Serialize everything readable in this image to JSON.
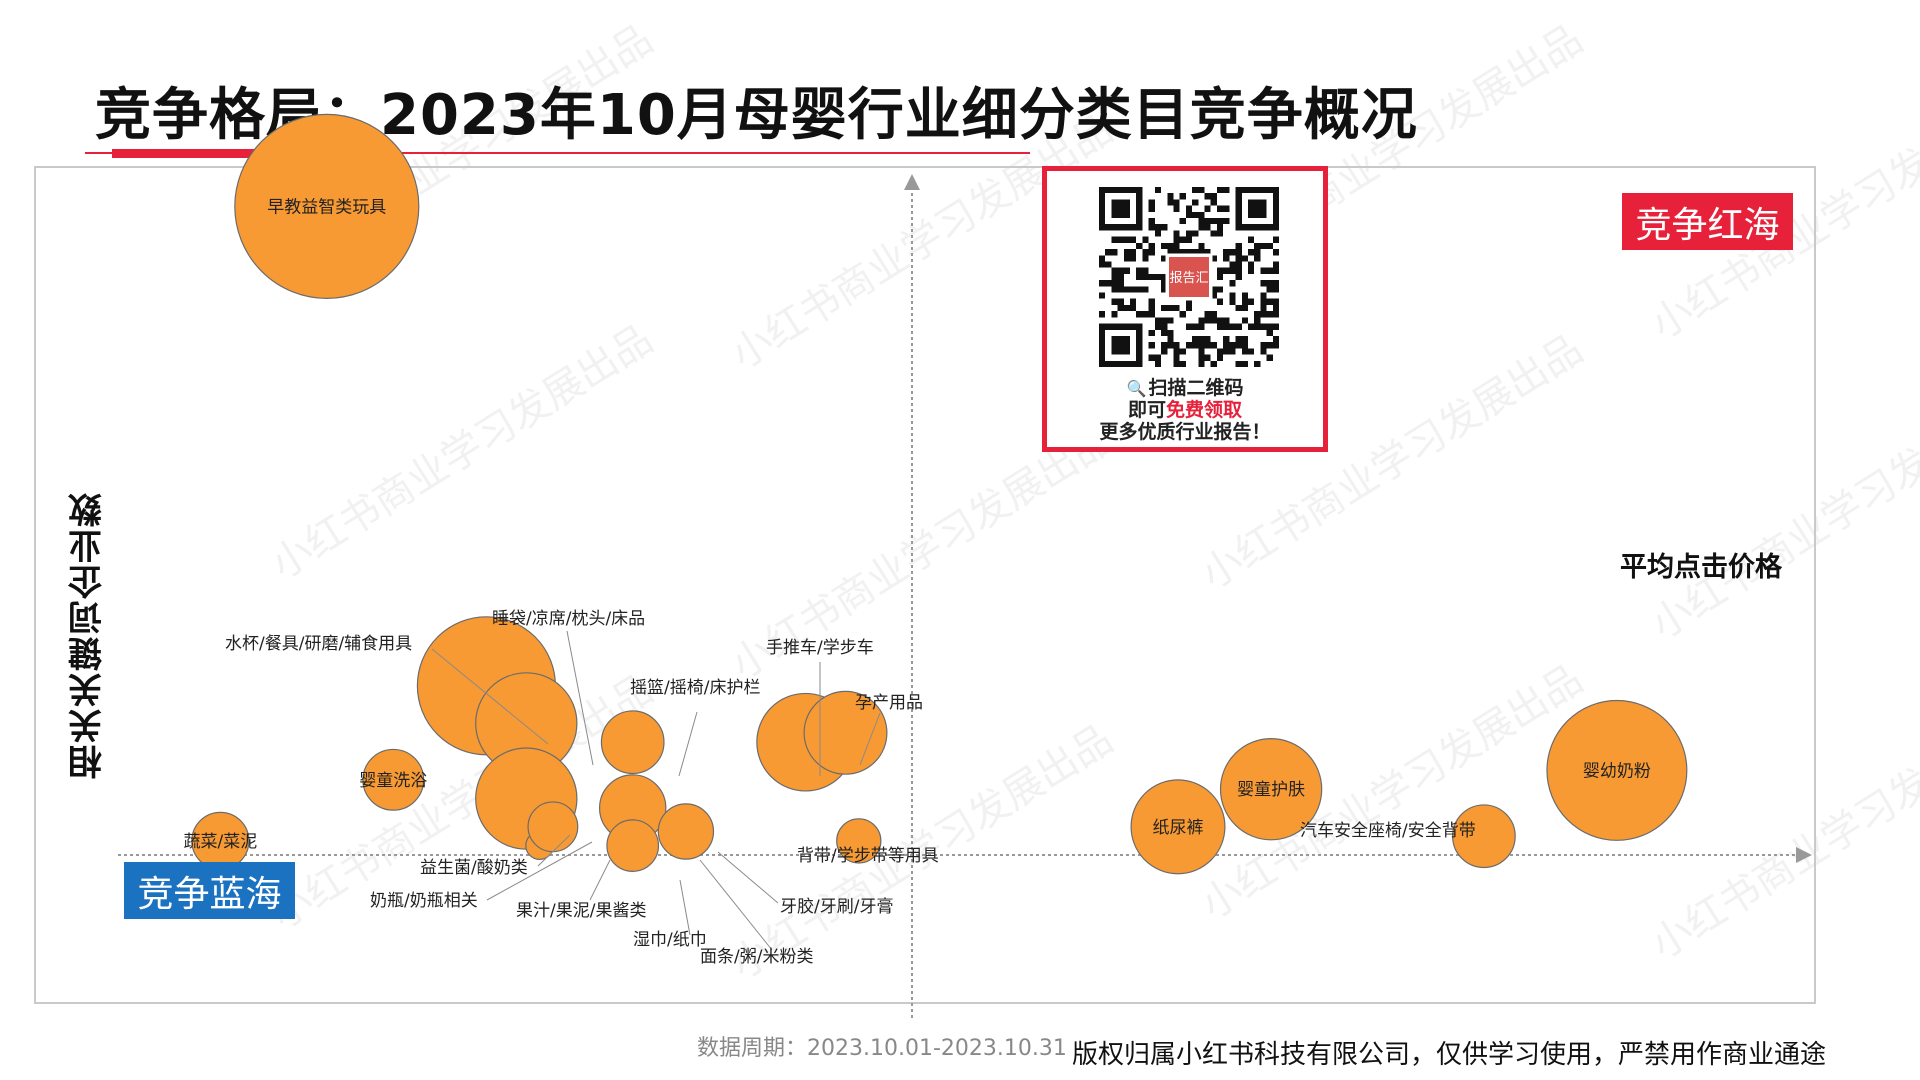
{
  "title": "竞争格局：2023年10月母婴行业细分类目竞争概况",
  "quadrants": {
    "red_sea": "竞争红海",
    "blue_sea": "竞争蓝海"
  },
  "qr": {
    "logo_text": "报告汇",
    "line1": "扫描二维码",
    "line2_prefix": "即可",
    "line2_highlight": "免费领取",
    "line3": "更多优质行业报告！"
  },
  "footer": {
    "date_range": "数据周期：2023.10.01-2023.10.31",
    "copyright": "版权归属小红书科技有限公司，仅供学习使用，严禁用作商业通途"
  },
  "watermark": "小红书商业学习发展出品",
  "colors": {
    "bubble": "#f89a33",
    "accent_red": "#e8213a",
    "accent_blue": "#1a72c0"
  },
  "chart_data": {
    "type": "scatter",
    "xlabel": "平均点击价格",
    "ylabel": "相关关键词企业数",
    "grid": false,
    "points": [
      {
        "label": "早教益智类玩具",
        "x": -4.4,
        "y": 6.9,
        "size": 1.0
      },
      {
        "label": "水杯/餐具/研磨/辅食用具",
        "x": -3.2,
        "y": 1.8,
        "size": 0.75
      },
      {
        "label": "睡袋/凉席/枕头/床品",
        "x": -2.9,
        "y": 1.4,
        "size": 0.55
      },
      {
        "label": "摇篮/摇椅/床护栏",
        "x": -2.1,
        "y": 1.2,
        "size": 0.34
      },
      {
        "label": "手推车/学步车",
        "x": -0.8,
        "y": 1.2,
        "size": 0.53
      },
      {
        "label": "孕产用品",
        "x": -0.5,
        "y": 1.3,
        "size": 0.45
      },
      {
        "label": "背带/学步带等用具",
        "x": -0.4,
        "y": 0.15,
        "size": 0.24
      },
      {
        "label": "婴童洗浴",
        "x": -3.9,
        "y": 0.8,
        "size": 0.33
      },
      {
        "label": "蔬菜/菜泥",
        "x": -5.2,
        "y": 0.15,
        "size": 0.31
      },
      {
        "label": "益生菌/酸奶类",
        "x": -2.9,
        "y": 0.6,
        "size": 0.55
      },
      {
        "label": "奶瓶/奶瓶相关",
        "x": -2.8,
        "y": 0.1,
        "size": 0.15
      },
      {
        "label": "果汁/果泥/果酱类",
        "x": -2.7,
        "y": 0.3,
        "size": 0.27
      },
      {
        "label": "湿巾/纸巾",
        "x": -2.1,
        "y": 0.5,
        "size": 0.36
      },
      {
        "label": "面条/粥/米粉类",
        "x": -2.1,
        "y": 0.1,
        "size": 0.28
      },
      {
        "label": "牙胶/牙刷/牙膏",
        "x": -1.7,
        "y": 0.25,
        "size": 0.3
      },
      {
        "label": "纸尿裤",
        "x": 2.0,
        "y": 0.3,
        "size": 0.51
      },
      {
        "label": "婴童护肤",
        "x": 2.7,
        "y": 0.7,
        "size": 0.55
      },
      {
        "label": "汽车安全座椅/安全背带",
        "x": 4.3,
        "y": 0.2,
        "size": 0.34
      },
      {
        "label": "婴幼奶粉",
        "x": 5.3,
        "y": 0.9,
        "size": 0.76
      }
    ]
  }
}
